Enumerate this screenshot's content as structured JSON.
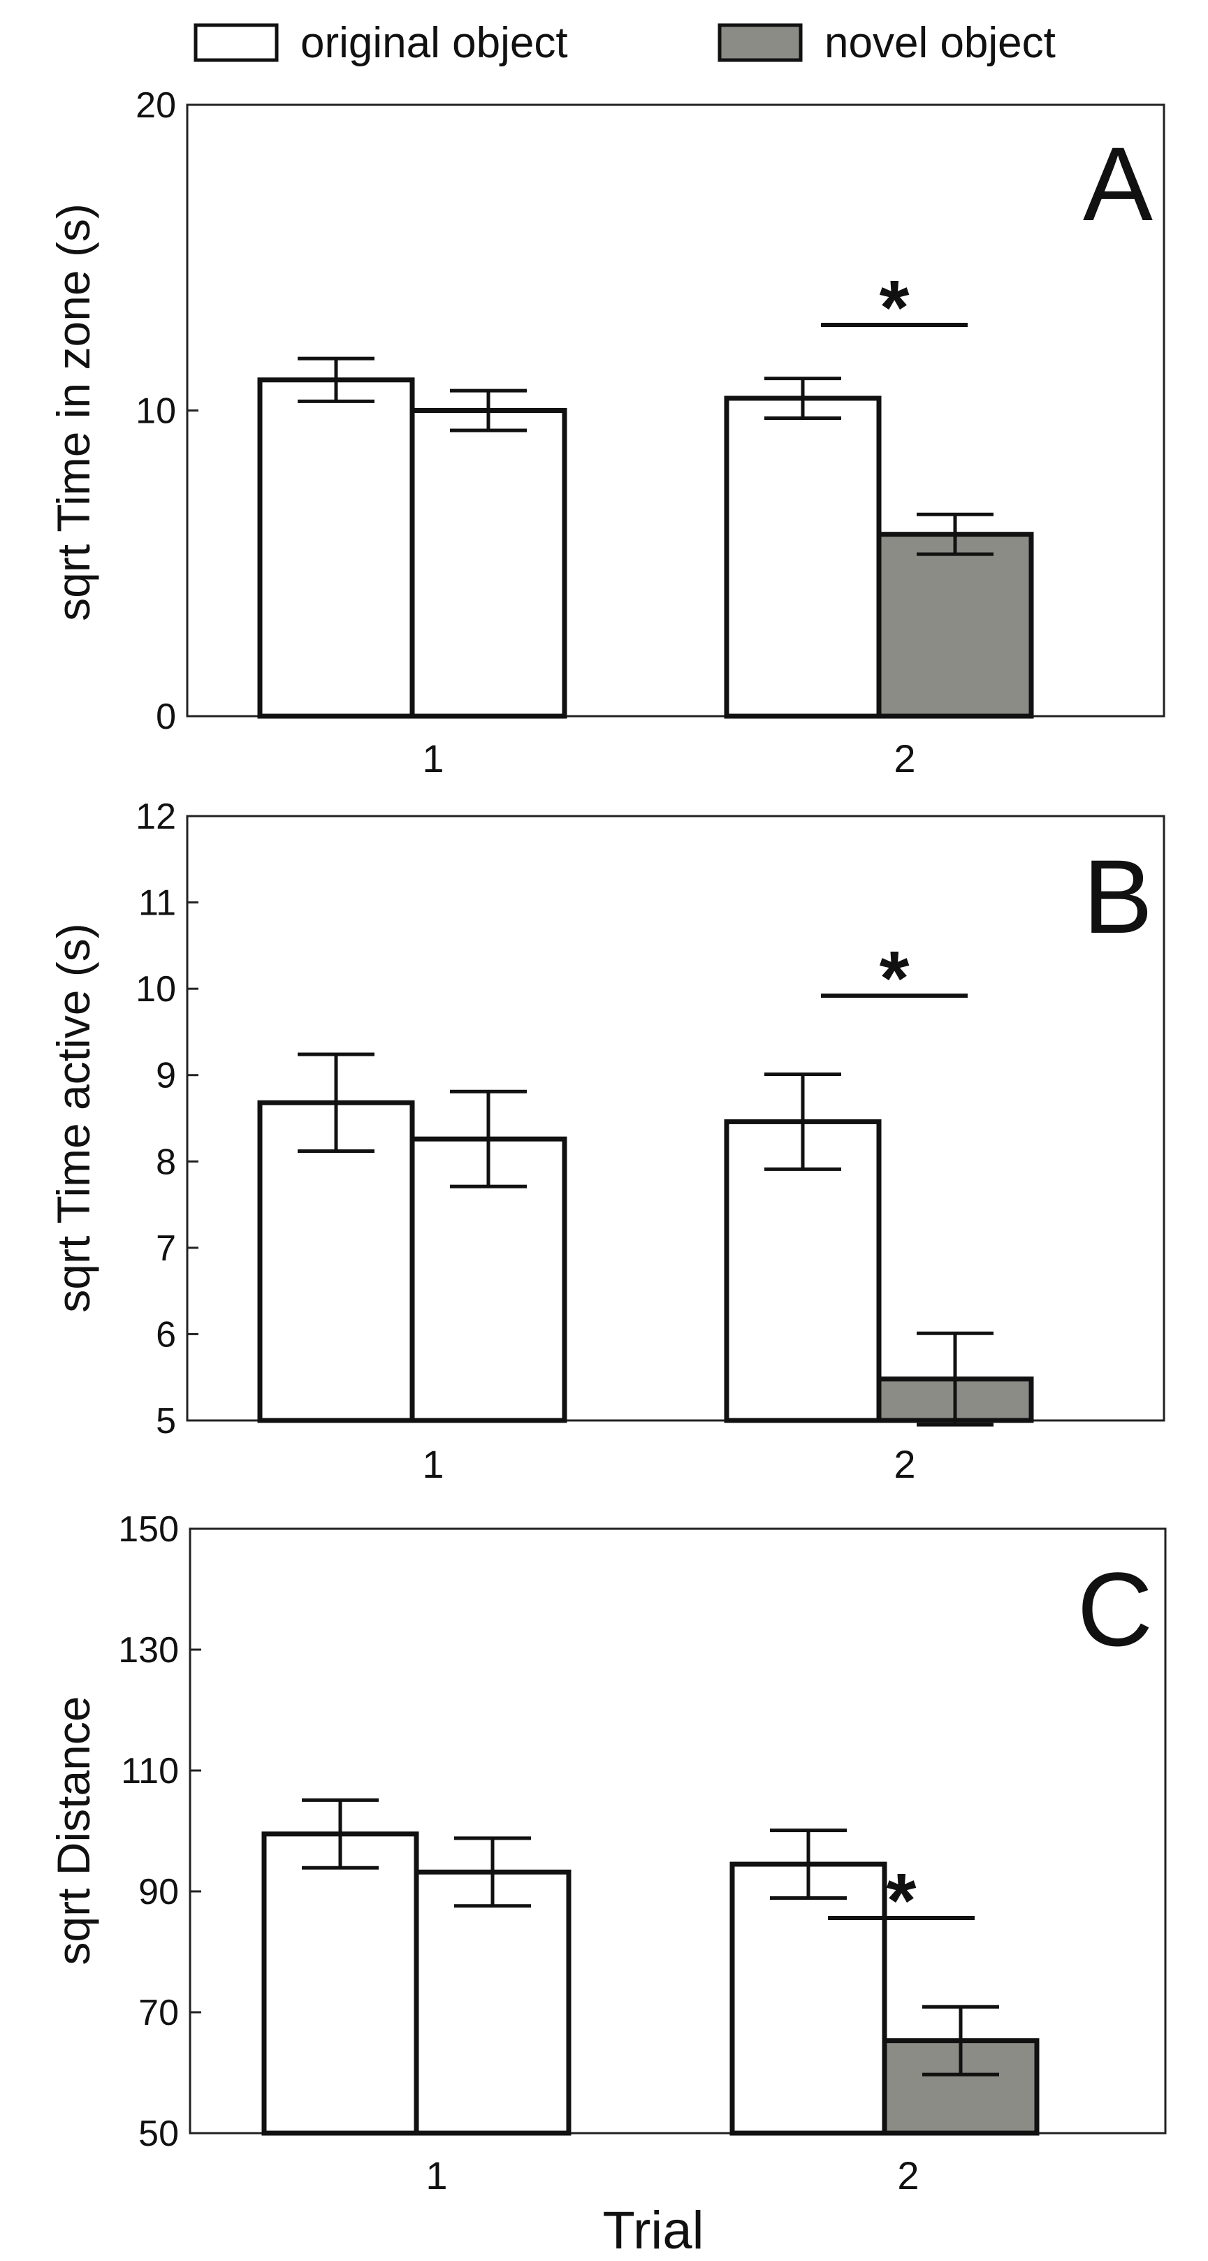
{
  "legend": {
    "items": [
      {
        "label": "original object",
        "color": "#ffffff"
      },
      {
        "label": "novel object",
        "color": "#8c8c86"
      }
    ]
  },
  "xlabel": "Trial",
  "chart_data": [
    {
      "type": "bar",
      "panel": "A",
      "ylabel": "sqrt Time in zone (s)",
      "ylim": [
        0,
        20
      ],
      "yticks": [
        0,
        10,
        20
      ],
      "categories": [
        "1",
        "2"
      ],
      "series": [
        {
          "name": "original object",
          "values": [
            11.0,
            10.4
          ],
          "errors": [
            0.7,
            0.65
          ]
        },
        {
          "name": "novel object",
          "values": [
            10.0,
            5.95
          ],
          "errors": [
            0.65,
            0.65
          ]
        }
      ],
      "series_colors": [
        [
          "#ffffff",
          "#ffffff"
        ],
        [
          "#ffffff",
          "#8c8c86"
        ]
      ],
      "significance": {
        "category_index": 1,
        "label": "*"
      }
    },
    {
      "type": "bar",
      "panel": "B",
      "ylabel": "sqrt Time active (s)",
      "ylim": [
        5,
        12
      ],
      "yticks": [
        5,
        6,
        7,
        8,
        9,
        10,
        11,
        12
      ],
      "categories": [
        "1",
        "2"
      ],
      "series": [
        {
          "name": "original object",
          "values": [
            8.68,
            8.46
          ],
          "errors": [
            0.56,
            0.55
          ]
        },
        {
          "name": "novel object",
          "values": [
            8.26,
            5.48
          ],
          "errors": [
            0.55,
            0.53
          ]
        }
      ],
      "series_colors": [
        [
          "#ffffff",
          "#ffffff"
        ],
        [
          "#ffffff",
          "#8c8c86"
        ]
      ],
      "significance": {
        "category_index": 1,
        "label": "*"
      }
    },
    {
      "type": "bar",
      "panel": "C",
      "ylabel": "sqrt Distance",
      "ylim": [
        50,
        150
      ],
      "yticks": [
        50,
        70,
        90,
        110,
        130,
        150
      ],
      "categories": [
        "1",
        "2"
      ],
      "series": [
        {
          "name": "original object",
          "values": [
            99.5,
            94.5
          ],
          "errors": [
            5.6,
            5.6
          ]
        },
        {
          "name": "novel object",
          "values": [
            93.2,
            65.3
          ],
          "errors": [
            5.6,
            5.6
          ]
        }
      ],
      "series_colors": [
        [
          "#ffffff",
          "#ffffff"
        ],
        [
          "#ffffff",
          "#8c8c86"
        ]
      ],
      "significance": {
        "category_index": 1,
        "label": "*"
      }
    }
  ]
}
